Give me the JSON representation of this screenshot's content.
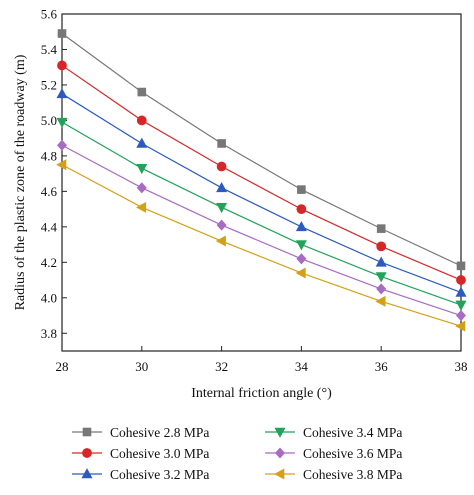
{
  "chart_data": {
    "type": "line",
    "xlabel": "Internal friction angle (°)",
    "ylabel": "Radius of the plastic zone of the roadway (m)",
    "xlim": [
      28,
      38
    ],
    "ylim": [
      3.7,
      5.6
    ],
    "xticks": [
      "28",
      "30",
      "32",
      "34",
      "36",
      "38"
    ],
    "yticks": [
      "3.8",
      "4.0",
      "4.2",
      "4.4",
      "4.6",
      "4.8",
      "5.0",
      "5.2",
      "5.4",
      "5.6"
    ],
    "x": [
      28,
      30,
      32,
      34,
      36,
      38
    ],
    "grid": false,
    "legend_position": "bottom",
    "series": [
      {
        "name": "Cohesive 2.8 MPa",
        "values": [
          5.49,
          5.16,
          4.87,
          4.61,
          4.39,
          4.18
        ],
        "color": "#777777",
        "marker": "square"
      },
      {
        "name": "Cohesive 3.0 MPa",
        "values": [
          5.31,
          5.0,
          4.74,
          4.5,
          4.29,
          4.1
        ],
        "color": "#d62728",
        "marker": "circle"
      },
      {
        "name": "Cohesive 3.2 MPa",
        "values": [
          5.15,
          4.87,
          4.62,
          4.4,
          4.2,
          4.03
        ],
        "color": "#2c5bbd",
        "marker": "triangle-up"
      },
      {
        "name": "Cohesive 3.4 MPa",
        "values": [
          4.99,
          4.73,
          4.51,
          4.3,
          4.12,
          3.96
        ],
        "color": "#22a35a",
        "marker": "triangle-down"
      },
      {
        "name": "Cohesive 3.6 MPa",
        "values": [
          4.86,
          4.62,
          4.41,
          4.22,
          4.05,
          3.9
        ],
        "color": "#a86bc4",
        "marker": "diamond"
      },
      {
        "name": "Cohesive 3.8 MPa",
        "values": [
          4.75,
          4.51,
          4.32,
          4.14,
          3.98,
          3.84
        ],
        "color": "#d4a017",
        "marker": "triangle-left"
      }
    ]
  }
}
